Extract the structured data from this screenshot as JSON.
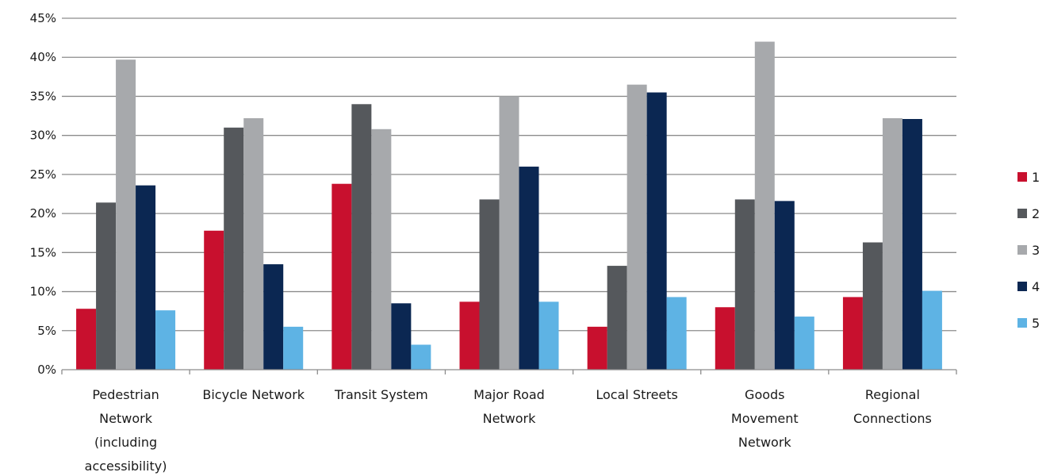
{
  "chart_data": {
    "type": "bar",
    "categories": [
      [
        "Pedestrian",
        "Network",
        "(including",
        "accessibility)"
      ],
      [
        "Bicycle Network"
      ],
      [
        "Transit System"
      ],
      [
        "Major Road",
        "Network"
      ],
      [
        "Local Streets"
      ],
      [
        "Goods",
        "Movement",
        "Network"
      ],
      [
        "Regional",
        "Connections"
      ]
    ],
    "series": [
      {
        "name": "1",
        "color": "#c8102e",
        "values": [
          7.8,
          17.8,
          23.8,
          8.7,
          5.5,
          8.0,
          9.3
        ]
      },
      {
        "name": "2",
        "color": "#55585c",
        "values": [
          21.4,
          31.0,
          34.0,
          21.8,
          13.3,
          21.8,
          16.3
        ]
      },
      {
        "name": "3",
        "color": "#a7a9ac",
        "values": [
          39.7,
          32.2,
          30.8,
          35.0,
          36.5,
          42.0,
          32.2
        ]
      },
      {
        "name": "4",
        "color": "#0b2752",
        "values": [
          23.6,
          13.5,
          8.5,
          26.0,
          35.5,
          21.6,
          32.1
        ]
      },
      {
        "name": "5",
        "color": "#5eb3e4",
        "values": [
          7.6,
          5.5,
          3.2,
          8.7,
          9.3,
          6.8,
          10.1
        ]
      }
    ],
    "ylim": [
      0,
      45
    ],
    "yticks": [
      0,
      5,
      10,
      15,
      20,
      25,
      30,
      35,
      40,
      45
    ],
    "ytick_suffix": "%",
    "grid": true,
    "legend_position": "right",
    "title": "",
    "xlabel": "",
    "ylabel": ""
  }
}
